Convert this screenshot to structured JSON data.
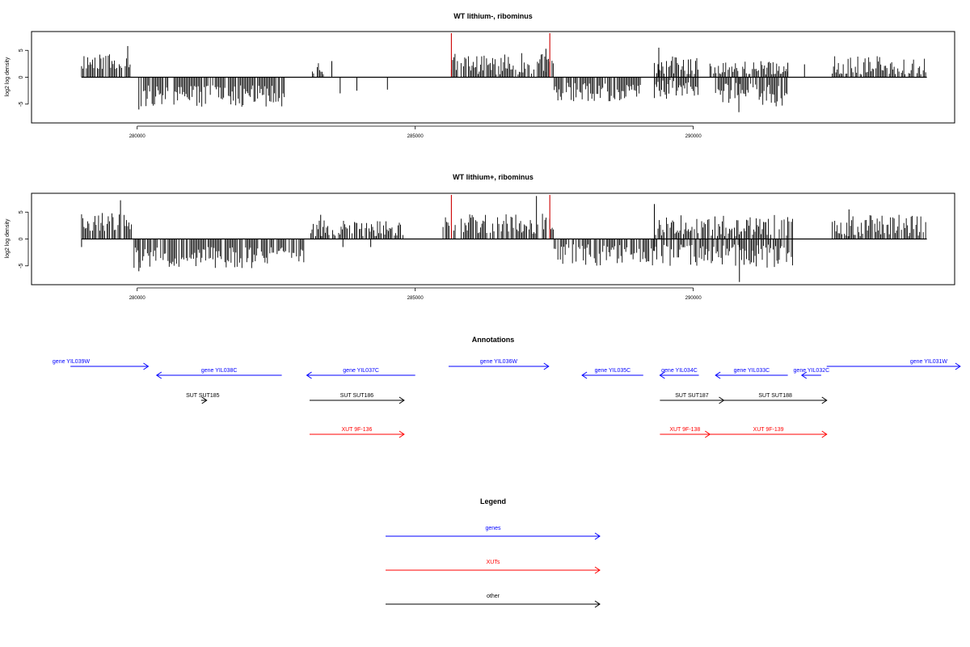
{
  "chart_data": [
    {
      "type": "bar",
      "title": "WT lithium-, ribominus",
      "ylabel": "log2 log density",
      "xlim": [
        278100,
        294700
      ],
      "ylim": [
        -8.5,
        8.5
      ],
      "xticks": [
        280000,
        285000,
        290000
      ],
      "xtick_labels": [
        "280000",
        "285000",
        "290000"
      ],
      "yticks": [
        5,
        0,
        -5
      ],
      "ytick_labels": [
        "5",
        "0",
        "-5"
      ],
      "grid": false,
      "baseline": {
        "from": 279000,
        "to": 294200,
        "y": 0
      },
      "density_regions": [
        {
          "from": 279000,
          "to": 279900,
          "sign": 1,
          "min": 1.5,
          "max": 4.5
        },
        {
          "from": 280050,
          "to": 282650,
          "sign": -1,
          "min": 1.5,
          "max": 5.5
        },
        {
          "from": 283150,
          "to": 283350,
          "sign": 1,
          "min": 0.5,
          "max": 3
        },
        {
          "from": 285650,
          "to": 287500,
          "sign": 1,
          "min": 0.5,
          "max": 4.5
        },
        {
          "from": 287500,
          "to": 289050,
          "sign": -1,
          "min": 1,
          "max": 4.5
        },
        {
          "from": 289300,
          "to": 290100,
          "sign": 1,
          "min": 0.5,
          "max": 4
        },
        {
          "from": 289300,
          "to": 290100,
          "sign": -1,
          "min": 0.5,
          "max": 4
        },
        {
          "from": 290400,
          "to": 291700,
          "sign": -1,
          "min": 1,
          "max": 5.5
        },
        {
          "from": 290300,
          "to": 291700,
          "sign": 1,
          "min": 0.5,
          "max": 3
        },
        {
          "from": 292500,
          "to": 294200,
          "sign": 1,
          "min": 0.5,
          "max": 4
        }
      ],
      "peaks": [
        {
          "x": 279830,
          "y": 5.8
        },
        {
          "x": 280030,
          "y": -6
        },
        {
          "x": 283500,
          "y": 3
        },
        {
          "x": 283650,
          "y": -3
        },
        {
          "x": 283950,
          "y": -2.5
        },
        {
          "x": 284500,
          "y": -2.3
        },
        {
          "x": 287350,
          "y": 5.3
        },
        {
          "x": 289380,
          "y": 5.5
        },
        {
          "x": 290820,
          "y": -6.5
        },
        {
          "x": 291700,
          "y": 2.7
        },
        {
          "x": 292000,
          "y": 2.4
        }
      ],
      "highlights": [
        {
          "x": 285650,
          "y": 8.2
        },
        {
          "x": 287420,
          "y": 8.2
        }
      ]
    },
    {
      "type": "bar",
      "title": "WT lithium+, ribominus",
      "ylabel": "log2 log density",
      "xlim": [
        278100,
        294700
      ],
      "ylim": [
        -8.5,
        8.5
      ],
      "xticks": [
        280000,
        285000,
        290000
      ],
      "xtick_labels": [
        "280000",
        "285000",
        "290000"
      ],
      "yticks": [
        5,
        0,
        -5
      ],
      "ytick_labels": [
        "5",
        "0",
        "-5"
      ],
      "grid": false,
      "baseline": {
        "from": 279000,
        "to": 294200,
        "y": 0
      },
      "density_regions": [
        {
          "from": 279000,
          "to": 279900,
          "sign": 1,
          "min": 1.5,
          "max": 5
        },
        {
          "from": 279900,
          "to": 283000,
          "sign": -1,
          "min": 1.5,
          "max": 5.5
        },
        {
          "from": 283100,
          "to": 284800,
          "sign": 1,
          "min": 0.5,
          "max": 3.5
        },
        {
          "from": 285500,
          "to": 287500,
          "sign": 1,
          "min": 1,
          "max": 5
        },
        {
          "from": 287500,
          "to": 289300,
          "sign": -1,
          "min": 1,
          "max": 5
        },
        {
          "from": 289300,
          "to": 291800,
          "sign": 1,
          "min": 0.5,
          "max": 4.5
        },
        {
          "from": 289300,
          "to": 291800,
          "sign": -1,
          "min": 1,
          "max": 5.5
        },
        {
          "from": 292500,
          "to": 294200,
          "sign": 1,
          "min": 0.5,
          "max": 4.5
        }
      ],
      "peaks": [
        {
          "x": 279000,
          "y": -1.5
        },
        {
          "x": 279700,
          "y": 7.2
        },
        {
          "x": 280030,
          "y": -6
        },
        {
          "x": 283300,
          "y": 4.5
        },
        {
          "x": 283700,
          "y": -1.5
        },
        {
          "x": 284200,
          "y": -1.5
        },
        {
          "x": 287180,
          "y": 8
        },
        {
          "x": 289300,
          "y": 6.5
        },
        {
          "x": 290830,
          "y": -8
        },
        {
          "x": 292800,
          "y": 5.5
        }
      ],
      "highlights": [
        {
          "x": 285650,
          "y": 8.2
        },
        {
          "x": 287420,
          "y": 8.2
        }
      ]
    }
  ],
  "annotations": {
    "title": "Annotations",
    "xlim": [
      278100,
      294700
    ],
    "colors": {
      "gene": "#0000ff",
      "xut": "#ff0000",
      "other": "#000000"
    },
    "features": [
      {
        "label": "gene YIL039W",
        "kind": "gene",
        "from": 278800,
        "to": 280200,
        "dir": "right",
        "row": 0
      },
      {
        "label": "gene YIL038C",
        "kind": "gene",
        "from": 280350,
        "to": 282600,
        "dir": "left",
        "row": 1
      },
      {
        "label": "gene YIL037C",
        "kind": "gene",
        "from": 283050,
        "to": 285000,
        "dir": "left",
        "row": 1
      },
      {
        "label": "gene YIL036W",
        "kind": "gene",
        "from": 285600,
        "to": 287400,
        "dir": "right",
        "row": 0
      },
      {
        "label": "gene YIL035C",
        "kind": "gene",
        "from": 288000,
        "to": 289100,
        "dir": "left",
        "row": 1
      },
      {
        "label": "gene YIL034C",
        "kind": "gene",
        "from": 289400,
        "to": 290100,
        "dir": "left",
        "row": 1
      },
      {
        "label": "gene YIL033C",
        "kind": "gene",
        "from": 290400,
        "to": 291700,
        "dir": "left",
        "row": 1
      },
      {
        "label": "gene YIL032C",
        "kind": "gene",
        "from": 291950,
        "to": 292300,
        "dir": "left",
        "row": 1
      },
      {
        "label": "gene YIL031W",
        "kind": "gene",
        "from": 292400,
        "to": 294800,
        "dir": "right",
        "row": 0
      },
      {
        "label": "SUT SUT185",
        "kind": "other",
        "from": 281150,
        "to": 281250,
        "dir": "right",
        "row": 2
      },
      {
        "label": "SUT SUT186",
        "kind": "other",
        "from": 283100,
        "to": 284800,
        "dir": "right",
        "row": 2
      },
      {
        "label": "SUT SUT187",
        "kind": "other",
        "from": 289400,
        "to": 290550,
        "dir": "right",
        "row": 2
      },
      {
        "label": "SUT SUT188",
        "kind": "other",
        "from": 290550,
        "to": 292400,
        "dir": "right",
        "row": 2
      },
      {
        "label": "XUT 9F-136",
        "kind": "xut",
        "from": 283100,
        "to": 284800,
        "dir": "right",
        "row": 3
      },
      {
        "label": "XUT 9F-138",
        "kind": "xut",
        "from": 289400,
        "to": 290300,
        "dir": "right",
        "row": 3
      },
      {
        "label": "XUT 9F-139",
        "kind": "xut",
        "from": 290300,
        "to": 292400,
        "dir": "right",
        "row": 3
      }
    ]
  },
  "legend": {
    "title": "Legend",
    "items": [
      {
        "label": "genes",
        "kind": "gene"
      },
      {
        "label": "XUTs",
        "kind": "xut"
      },
      {
        "label": "other",
        "kind": "other"
      }
    ]
  }
}
